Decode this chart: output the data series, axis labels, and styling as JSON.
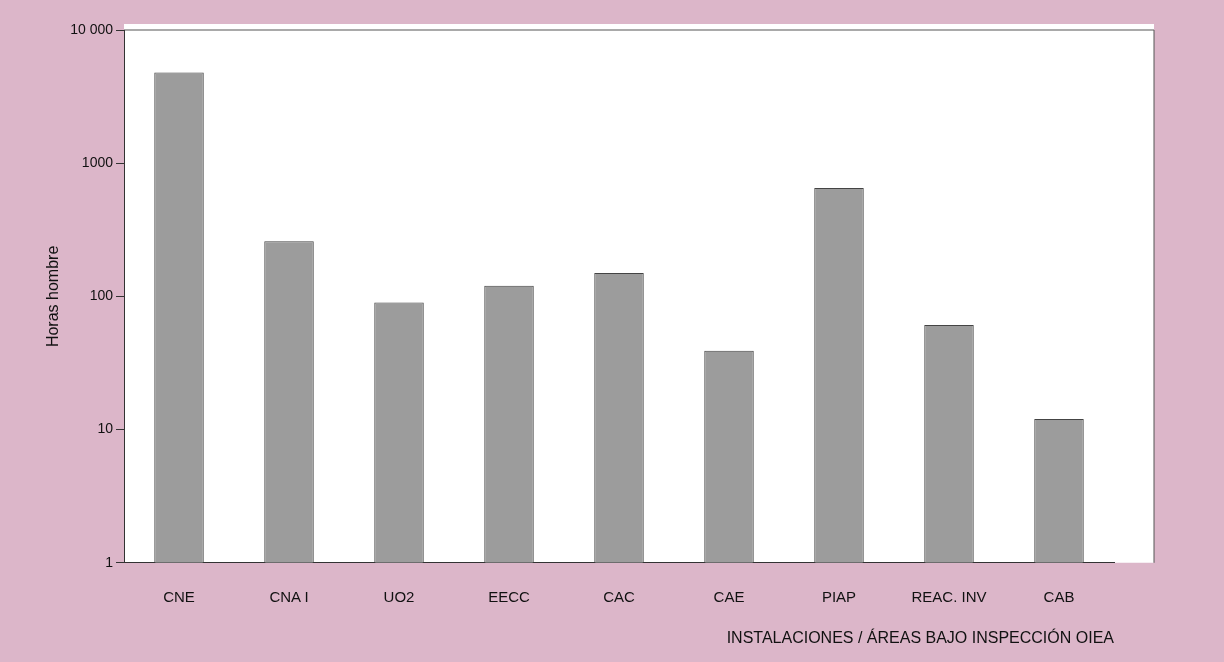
{
  "chart_data": {
    "type": "bar",
    "xlabel": "INSTALACIONES / ÁREAS BAJO INSPECCIÓN OIEA",
    "ylabel": "Horas hombre",
    "categories": [
      "CNE",
      "CNA I",
      "UO2",
      "EECC",
      "CAC",
      "CAE",
      "PIAP",
      "REAC. INV",
      "CAB"
    ],
    "values": [
      4800,
      260,
      90,
      120,
      150,
      39,
      650,
      61,
      12
    ],
    "color": "#9c9c9c",
    "log": true,
    "ylim": [
      1,
      10000
    ],
    "yticks": [
      1,
      10,
      100,
      1000,
      {
        "value": 10000,
        "label": "10 000"
      }
    ],
    "grid": false,
    "legend": false
  }
}
